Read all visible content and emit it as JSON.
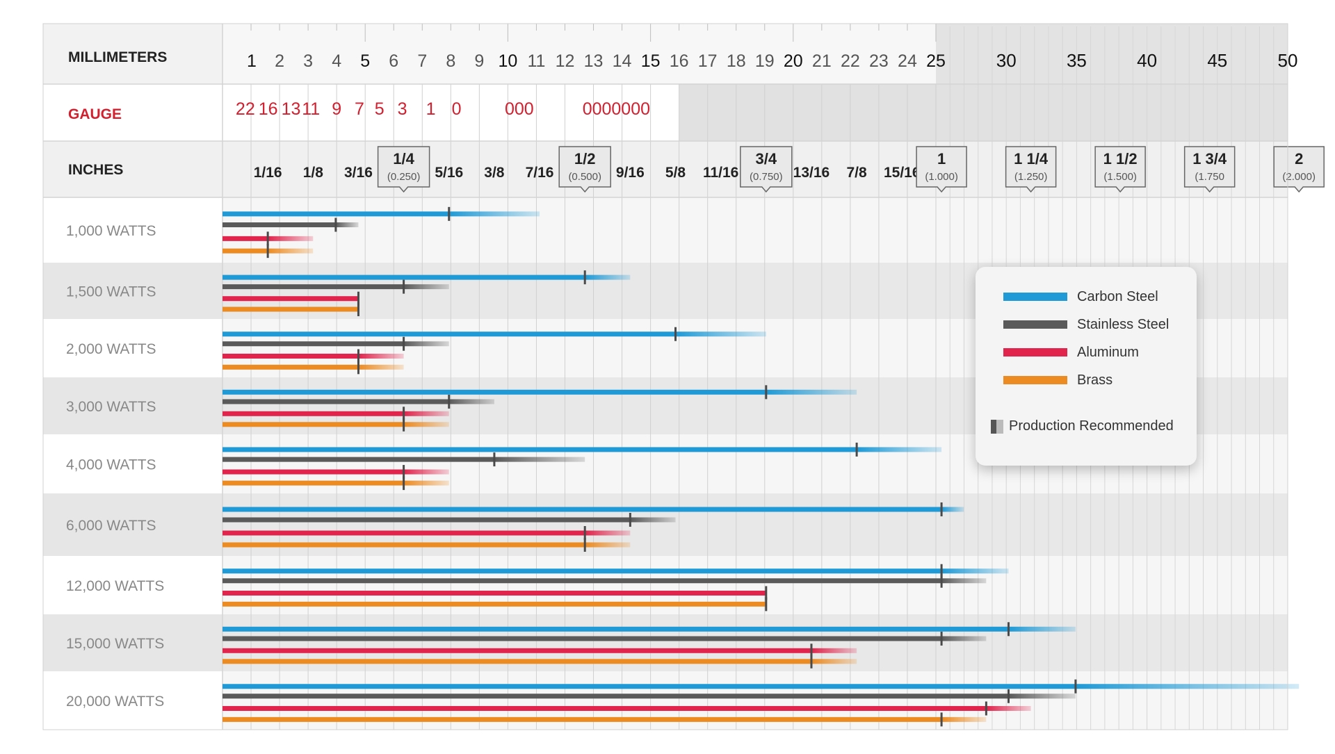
{
  "chart_data": {
    "type": "bar",
    "row_labels": [
      "1,000 WATTS",
      "1,500 WATTS",
      "2,000 WATTS",
      "3,000 WATTS",
      "4,000 WATTS",
      "6,000 WATTS",
      "12,000 WATTS",
      "15,000 WATTS",
      "20,000 WATTS"
    ],
    "header": {
      "millimeters_label": "MILLIMETERS",
      "gauge_label": "GAUGE",
      "inches_label": "INCHES"
    },
    "mm_ticks": [
      "1",
      "2",
      "3",
      "4",
      "5",
      "6",
      "7",
      "8",
      "9",
      "10",
      "11",
      "12",
      "13",
      "14",
      "15",
      "16",
      "17",
      "18",
      "19",
      "20",
      "21",
      "22",
      "23",
      "24",
      "25",
      "30",
      "35",
      "40",
      "45",
      "50"
    ],
    "mm_values": [
      1,
      2,
      3,
      4,
      5,
      6,
      7,
      8,
      9,
      10,
      11,
      12,
      13,
      14,
      15,
      16,
      17,
      18,
      19,
      20,
      21,
      22,
      23,
      24,
      25,
      30,
      35,
      40,
      45,
      50
    ],
    "gauge_ticks": [
      {
        "label": "22",
        "mm": 0.8
      },
      {
        "label": "16",
        "mm": 1.6
      },
      {
        "label": "13",
        "mm": 2.4
      },
      {
        "label": "11",
        "mm": 3.1
      },
      {
        "label": "9",
        "mm": 4.0
      },
      {
        "label": "7",
        "mm": 4.8
      },
      {
        "label": "5",
        "mm": 5.5
      },
      {
        "label": "3",
        "mm": 6.3
      },
      {
        "label": "1",
        "mm": 7.3
      },
      {
        "label": "0",
        "mm": 8.2
      },
      {
        "label": "000",
        "mm": 10.4
      },
      {
        "label": "0000000",
        "mm": 13.8
      }
    ],
    "inch_ticks": [
      {
        "label": "1/16",
        "in": 0.0625
      },
      {
        "label": "1/8",
        "in": 0.125
      },
      {
        "label": "3/16",
        "in": 0.1875
      },
      {
        "label": "1/4",
        "sub": "(0.250)",
        "in": 0.25,
        "boxed": true
      },
      {
        "label": "5/16",
        "in": 0.3125
      },
      {
        "label": "3/8",
        "in": 0.375
      },
      {
        "label": "7/16",
        "in": 0.4375
      },
      {
        "label": "1/2",
        "sub": "(0.500)",
        "in": 0.5,
        "boxed": true
      },
      {
        "label": "9/16",
        "in": 0.5625
      },
      {
        "label": "5/8",
        "in": 0.625
      },
      {
        "label": "11/16",
        "in": 0.6875
      },
      {
        "label": "3/4",
        "sub": "(0.750)",
        "in": 0.75,
        "boxed": true
      },
      {
        "label": "13/16",
        "in": 0.8125
      },
      {
        "label": "7/8",
        "in": 0.875
      },
      {
        "label": "15/16",
        "in": 0.9375
      },
      {
        "label": "1",
        "sub": "(1.000)",
        "in": 1.0,
        "boxed": true
      },
      {
        "label": "1 1/4",
        "sub": "(1.250)",
        "in": 1.25,
        "boxed": true
      },
      {
        "label": "1 1/2",
        "sub": "(1.500)",
        "in": 1.5,
        "boxed": true
      },
      {
        "label": "1 3/4",
        "sub": "(1.750",
        "in": 1.75,
        "boxed": true
      },
      {
        "label": "2",
        "sub": "(2.000)",
        "in": 2.0,
        "boxed": true
      }
    ],
    "series": [
      {
        "name": "Carbon Steel",
        "color": "#1f9ad6",
        "max_in": [
          0.4375,
          0.5625,
          0.75,
          0.875,
          1.0,
          1.0625,
          1.1875,
          1.375,
          2.0
        ],
        "rec_in": [
          0.3125,
          0.5,
          0.625,
          0.75,
          0.875,
          1.0,
          1.0,
          1.1875,
          1.375
        ]
      },
      {
        "name": "Stainless Steel",
        "color": "#5a5a5a",
        "max_in": [
          0.1875,
          0.3125,
          0.3125,
          0.375,
          0.5,
          0.625,
          1.125,
          1.125,
          1.375
        ],
        "rec_in": [
          0.15625,
          0.25,
          0.25,
          0.3125,
          0.375,
          0.5625,
          1.0,
          1.0,
          1.1875
        ]
      },
      {
        "name": "Aluminum",
        "color": "#e0244c",
        "max_in": [
          0.125,
          0.1875,
          0.25,
          0.3125,
          0.3125,
          0.5625,
          0.75,
          0.875,
          1.25
        ],
        "rec_in": [
          0.0625,
          0.1875,
          0.1875,
          0.25,
          0.25,
          0.5,
          0.75,
          0.8125,
          1.125
        ]
      },
      {
        "name": "Brass",
        "color": "#ec8b22",
        "max_in": [
          0.125,
          0.1875,
          0.25,
          0.3125,
          0.3125,
          0.5625,
          0.75,
          0.875,
          1.125
        ],
        "rec_in": [
          0.0625,
          0.1875,
          0.1875,
          0.25,
          0.25,
          0.5,
          0.75,
          0.8125,
          1.0
        ]
      }
    ],
    "legend": {
      "items": [
        "Carbon Steel",
        "Stainless Steel",
        "Aluminum",
        "Brass"
      ],
      "production_label": "Production Recommended"
    },
    "colors": {
      "gauge_text": "#d41f2f",
      "row_band": "#e8e8e8",
      "header_bg": "#f2f2f2"
    }
  }
}
